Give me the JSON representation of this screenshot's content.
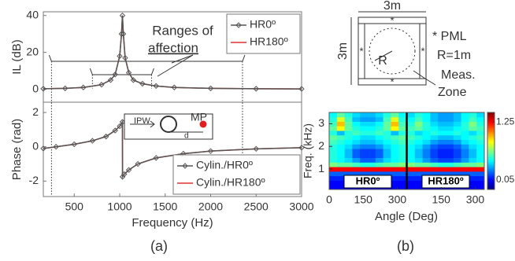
{
  "chart_data": [
    {
      "type": "line",
      "ylabel": "IL (dB)",
      "xlim": [
        160,
        3000
      ],
      "ylim": [
        -7,
        42
      ],
      "yticks": [
        0,
        20,
        40
      ],
      "legend": "upper right",
      "x": [
        160,
        400,
        600,
        800,
        900,
        950,
        1000,
        1020,
        1030,
        1040,
        1060,
        1100,
        1150,
        1250,
        1400,
        1600,
        2000,
        2500,
        3000
      ],
      "series": [
        {
          "name": "HR0º",
          "color": "#555555",
          "marker": "diamond",
          "values": [
            0.3,
            0.5,
            1,
            2.5,
            5,
            8,
            18,
            30,
            40,
            30,
            17,
            9,
            5,
            3,
            1.8,
            1,
            0.5,
            0.3,
            0.2
          ]
        },
        {
          "name": "HR180º",
          "color": "#e03030",
          "values": [
            0.3,
            0.5,
            1,
            2.5,
            5,
            8,
            18,
            30,
            40,
            30,
            17,
            9,
            5,
            3,
            1.8,
            1,
            0.5,
            0.3,
            0.2
          ]
        }
      ],
      "annotation": [
        "Ranges of",
        "affection"
      ],
      "ranges": [
        [
          250,
          2350
        ],
        [
          700,
          1350
        ]
      ]
    },
    {
      "type": "line",
      "ylabel": "Phase (rad)",
      "xlabel": "Frequency (Hz)",
      "xlim": [
        160,
        3000
      ],
      "ylim": [
        -2.9,
        2.6
      ],
      "yticks": [
        -2,
        0,
        2
      ],
      "xticks": [
        500,
        1000,
        1500,
        2000,
        2500,
        3000
      ],
      "legend": "lower right",
      "x": [
        160,
        300,
        500,
        700,
        850,
        950,
        1000,
        1030,
        1031,
        1050,
        1100,
        1200,
        1400,
        1700,
        2000,
        2500,
        3000
      ],
      "series": [
        {
          "name": "Cylin./HR0º",
          "color": "#555555",
          "marker": "diamond",
          "values": [
            -0.1,
            0,
            0.15,
            0.35,
            0.6,
            0.95,
            1.2,
            1.45,
            -1.75,
            -1.6,
            -1.35,
            -1.0,
            -0.65,
            -0.4,
            -0.25,
            -0.12,
            -0.05
          ]
        },
        {
          "name": "Cylin./HR180º",
          "color": "#e03030",
          "values": [
            -0.1,
            0,
            0.15,
            0.35,
            0.6,
            0.95,
            1.2,
            1.45,
            -1.75,
            -1.6,
            -1.35,
            -1.0,
            -0.65,
            -0.4,
            -0.25,
            -0.12,
            -0.05
          ]
        }
      ],
      "inset_labels": [
        "IPW",
        "MP",
        "d"
      ]
    },
    {
      "type": "heatmap",
      "ylabel": "Freq. (kHz)",
      "xlabel": "Angle (Deg)",
      "colormap": "jet",
      "xlim": [
        0,
        340
      ],
      "ylim": [
        0.1,
        3.5
      ],
      "xticks": [
        0,
        150,
        300
      ],
      "yticks": [
        1,
        2,
        3
      ],
      "x": [
        17,
        51,
        85,
        119,
        153,
        187,
        221,
        255,
        289,
        323
      ],
      "y": [
        0.2,
        0.4,
        0.6,
        0.8,
        1.0,
        1.2,
        1.4,
        1.6,
        1.8,
        2.0,
        2.2,
        2.4,
        2.6,
        2.8,
        3.0,
        3.2,
        3.4
      ],
      "colorbar": {
        "lim": [
          -0.15,
          1.45
        ],
        "ticks": [
          0.05,
          1.25
        ]
      },
      "panels": [
        {
          "name": "HR0º",
          "values": [
            [
              0.05,
              0.05,
              0.05,
              0.05,
              0.05,
              0.05,
              0.05,
              0.05,
              0.05,
              0.05
            ],
            [
              0.05,
              0.05,
              0.05,
              0.05,
              0.05,
              0.05,
              0.05,
              0.05,
              0.05,
              0.05
            ],
            [
              0.1,
              0.1,
              0.1,
              0.1,
              0.1,
              0.1,
              0.1,
              0.1,
              0.1,
              0.1
            ],
            [
              0.2,
              0.2,
              0.2,
              0.2,
              0.2,
              0.2,
              0.2,
              0.2,
              0.2,
              0.2
            ],
            [
              1.25,
              1.25,
              1.25,
              1.25,
              1.25,
              1.25,
              1.25,
              1.25,
              1.25,
              1.25
            ],
            [
              0.65,
              0.6,
              0.6,
              0.55,
              0.5,
              0.5,
              0.55,
              0.6,
              0.6,
              0.65
            ],
            [
              0.5,
              0.45,
              0.4,
              0.3,
              0.2,
              0.2,
              0.3,
              0.4,
              0.45,
              0.5
            ],
            [
              0.5,
              0.45,
              0.35,
              0.2,
              0.15,
              0.15,
              0.2,
              0.35,
              0.45,
              0.5
            ],
            [
              0.5,
              0.45,
              0.35,
              0.2,
              0.15,
              0.15,
              0.2,
              0.35,
              0.45,
              0.5
            ],
            [
              0.5,
              0.45,
              0.4,
              0.3,
              0.25,
              0.25,
              0.3,
              0.4,
              0.45,
              0.5
            ],
            [
              0.55,
              0.5,
              0.45,
              0.4,
              0.35,
              0.35,
              0.4,
              0.45,
              0.5,
              0.55
            ],
            [
              0.6,
              0.55,
              0.5,
              0.45,
              0.4,
              0.4,
              0.45,
              0.5,
              0.55,
              0.6
            ],
            [
              0.5,
              0.35,
              0.5,
              0.55,
              0.5,
              0.5,
              0.55,
              0.5,
              0.35,
              0.5
            ],
            [
              0.6,
              0.85,
              0.6,
              0.5,
              0.45,
              0.45,
              0.5,
              0.6,
              0.85,
              0.6
            ],
            [
              0.55,
              0.95,
              0.6,
              0.45,
              0.4,
              0.4,
              0.45,
              0.6,
              0.95,
              0.55
            ],
            [
              0.5,
              0.8,
              0.55,
              0.35,
              0.3,
              0.3,
              0.35,
              0.55,
              0.8,
              0.5
            ],
            [
              0.45,
              0.6,
              0.5,
              0.4,
              0.35,
              0.35,
              0.4,
              0.5,
              0.6,
              0.45
            ]
          ]
        },
        {
          "name": "HR180º",
          "values": [
            [
              0.05,
              0.05,
              0.05,
              0.05,
              0.05,
              0.05,
              0.05,
              0.05,
              0.05,
              0.05
            ],
            [
              0.05,
              0.05,
              0.05,
              0.05,
              0.05,
              0.05,
              0.05,
              0.05,
              0.05,
              0.05
            ],
            [
              0.1,
              0.1,
              0.1,
              0.1,
              0.1,
              0.1,
              0.1,
              0.1,
              0.1,
              0.1
            ],
            [
              0.2,
              0.2,
              0.2,
              0.2,
              0.2,
              0.2,
              0.2,
              0.2,
              0.2,
              0.2
            ],
            [
              1.25,
              1.25,
              1.25,
              1.25,
              1.25,
              1.25,
              1.25,
              1.25,
              1.25,
              1.25
            ],
            [
              0.65,
              0.6,
              0.6,
              0.55,
              0.5,
              0.5,
              0.55,
              0.6,
              0.6,
              0.65
            ],
            [
              0.45,
              0.4,
              0.3,
              0.2,
              0.15,
              0.15,
              0.2,
              0.3,
              0.4,
              0.45
            ],
            [
              0.45,
              0.35,
              0.25,
              0.15,
              0.1,
              0.1,
              0.15,
              0.25,
              0.35,
              0.45
            ],
            [
              0.45,
              0.35,
              0.25,
              0.15,
              0.1,
              0.1,
              0.15,
              0.25,
              0.35,
              0.45
            ],
            [
              0.45,
              0.4,
              0.3,
              0.2,
              0.15,
              0.15,
              0.2,
              0.3,
              0.4,
              0.45
            ],
            [
              0.5,
              0.45,
              0.4,
              0.3,
              0.25,
              0.25,
              0.3,
              0.4,
              0.45,
              0.5
            ],
            [
              0.55,
              0.5,
              0.45,
              0.4,
              0.35,
              0.35,
              0.4,
              0.45,
              0.5,
              0.55
            ],
            [
              0.5,
              0.4,
              0.45,
              0.5,
              0.45,
              0.45,
              0.5,
              0.45,
              0.4,
              0.5
            ],
            [
              0.55,
              0.6,
              0.5,
              0.45,
              0.4,
              0.4,
              0.45,
              0.5,
              0.6,
              0.55
            ],
            [
              0.5,
              0.65,
              0.5,
              0.4,
              0.35,
              0.35,
              0.4,
              0.5,
              0.65,
              0.5
            ],
            [
              0.45,
              0.55,
              0.45,
              0.35,
              0.3,
              0.3,
              0.35,
              0.45,
              0.55,
              0.45
            ],
            [
              0.4,
              0.5,
              0.45,
              0.35,
              0.3,
              0.3,
              0.35,
              0.45,
              0.5,
              0.4
            ]
          ]
        }
      ]
    }
  ],
  "diagram": {
    "width_label": "3m",
    "height_label": "3m",
    "pml": "* PML",
    "radius": "R=1m",
    "radius_symbol": "R",
    "zone": [
      "Meas.",
      "Zone"
    ]
  },
  "panel_labels": [
    "(a)",
    "(b)"
  ]
}
